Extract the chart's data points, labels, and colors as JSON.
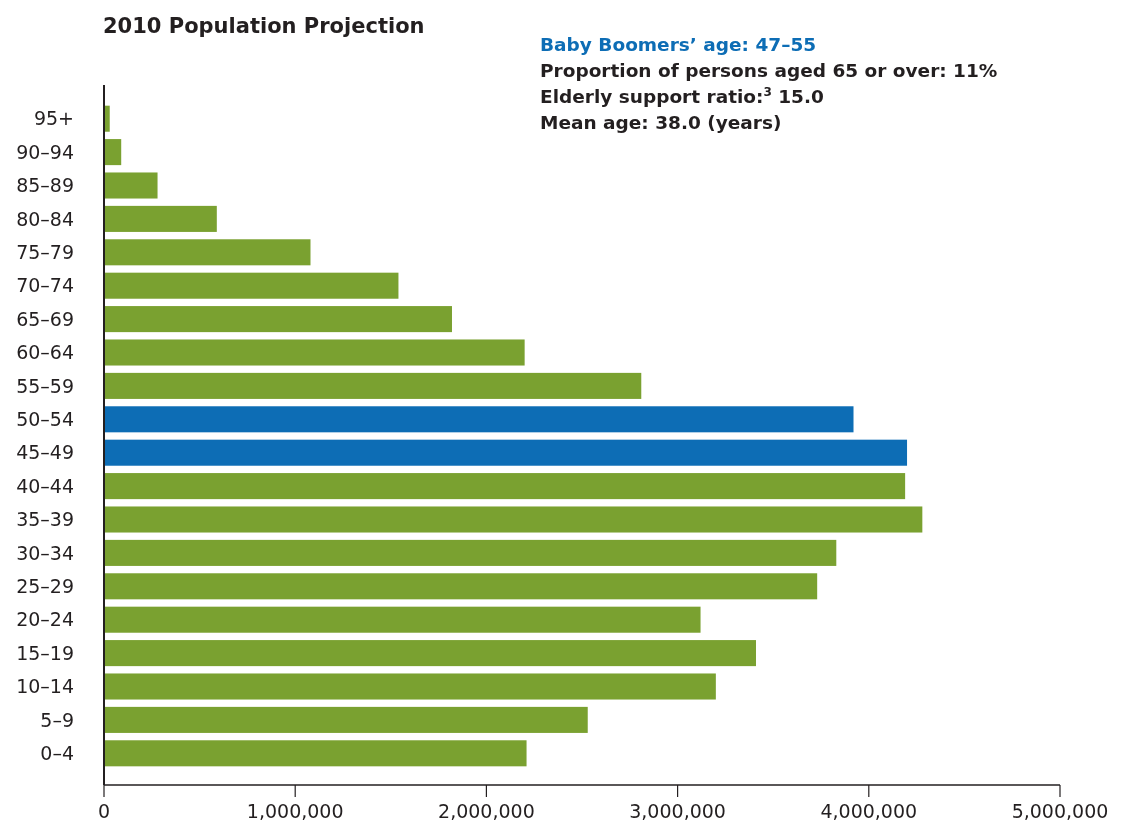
{
  "chart_data": {
    "type": "bar",
    "orientation": "horizontal",
    "title": "2010 Population Projection",
    "categories": [
      "95+",
      "90–94",
      "85–89",
      "80–84",
      "75–79",
      "70–74",
      "65–69",
      "60–64",
      "55–59",
      "50–54",
      "45–49",
      "40–44",
      "35–39",
      "30–34",
      "25–29",
      "20–24",
      "15–19",
      "10–14",
      "5–9",
      "0–4"
    ],
    "values": [
      30000,
      90000,
      280000,
      590000,
      1080000,
      1540000,
      1820000,
      2200000,
      2810000,
      3920000,
      4200000,
      4190000,
      4280000,
      3830000,
      3730000,
      3120000,
      3410000,
      3200000,
      2530000,
      2210000
    ],
    "colors": [
      "#7aa130",
      "#7aa130",
      "#7aa130",
      "#7aa130",
      "#7aa130",
      "#7aa130",
      "#7aa130",
      "#7aa130",
      "#7aa130",
      "#0d6db5",
      "#0d6db5",
      "#7aa130",
      "#7aa130",
      "#7aa130",
      "#7aa130",
      "#7aa130",
      "#7aa130",
      "#7aa130",
      "#7aa130",
      "#7aa130"
    ],
    "xlim": [
      0,
      5000000
    ],
    "xticks": [
      0,
      {
        "value": 1000000,
        "label": "1,000,000"
      },
      {
        "value": 2000000,
        "label": "2,000,000"
      },
      {
        "value": 3000000,
        "label": "3,000,000"
      },
      {
        "value": 4000000,
        "label": "4,000,000"
      },
      {
        "value": 5000000,
        "label": "5,000,000"
      }
    ],
    "grid": false,
    "annotations": [
      "Baby Boomers’ age: 47–55",
      "Proportion of persons aged 65 or over: 11%",
      "Elderly support ratio:$^{3}$ 15.0",
      "Mean age: 38.0 (years)"
    ]
  }
}
